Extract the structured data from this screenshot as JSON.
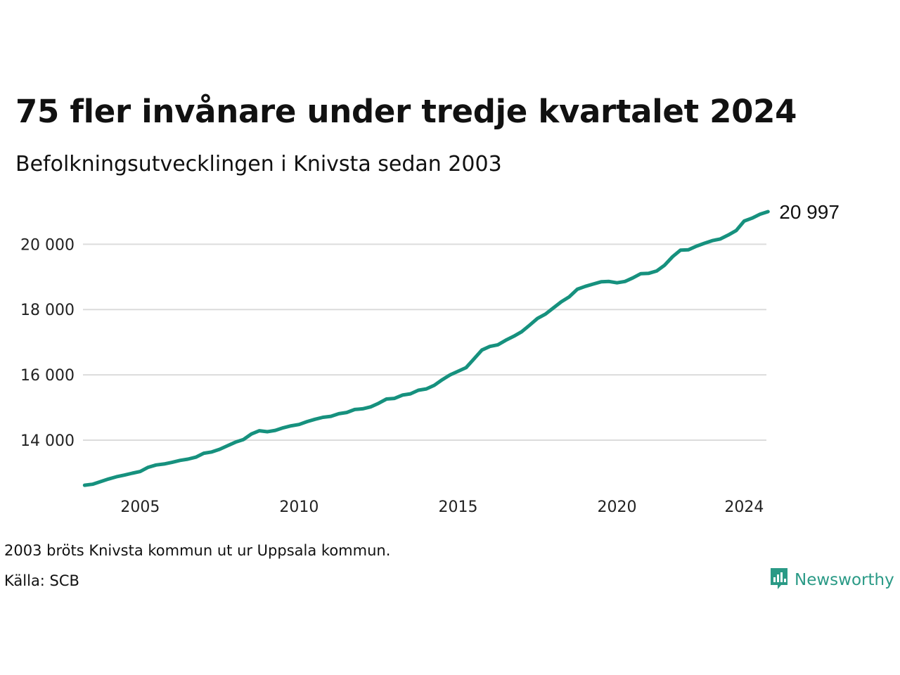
{
  "title": "75 fler invånare under tredje kvartalet 2024",
  "subtitle": "Befolkningsutvecklingen i Knivsta sedan 2003",
  "footer": {
    "note": "2003 bröts Knivsta kommun ut ur Uppsala kommun.",
    "source": "Källa: SCB"
  },
  "brand": {
    "name": "Newsworthy",
    "icon": "newsworthy-logo-icon",
    "color": "#2a9a86"
  },
  "end_label": "20 997",
  "chart_data": {
    "type": "line",
    "title": "75 fler invånare under tredje kvartalet 2024",
    "subtitle": "Befolkningsutvecklingen i Knivsta sedan 2003",
    "xlabel": "",
    "ylabel": "",
    "line_color": "#16917e",
    "grid": true,
    "xlim": [
      2003.2,
      2024.7
    ],
    "ylim": [
      12300,
      21450
    ],
    "y_ticks": [
      14000,
      16000,
      18000,
      20000
    ],
    "y_tick_labels": [
      "14 000",
      "16 000",
      "18 000",
      "20 000"
    ],
    "x_ticks": [
      2005,
      2010,
      2015,
      2020,
      2024
    ],
    "x_tick_labels": [
      "2005",
      "2010",
      "2015",
      "2020",
      "2024"
    ],
    "series": [
      {
        "x": [
          2003.25,
          2003.5,
          2003.75,
          2004.0,
          2004.25,
          2004.5,
          2004.75,
          2005.0,
          2005.25,
          2005.5,
          2005.75,
          2006.0,
          2006.25,
          2006.5,
          2006.75,
          2007.0,
          2007.25,
          2007.5,
          2007.75,
          2008.0,
          2008.25,
          2008.5,
          2008.75,
          2009.0,
          2009.25,
          2009.5,
          2009.75,
          2010.0,
          2010.25,
          2010.5,
          2010.75,
          2011.0,
          2011.25,
          2011.5,
          2011.75,
          2012.0,
          2012.25,
          2012.5,
          2012.75,
          2013.0,
          2013.25,
          2013.5,
          2013.75,
          2014.0,
          2014.25,
          2014.5,
          2014.75,
          2015.0,
          2015.25,
          2015.5,
          2015.75,
          2016.0,
          2016.25,
          2016.5,
          2016.75,
          2017.0,
          2017.25,
          2017.5,
          2017.75,
          2018.0,
          2018.25,
          2018.5,
          2018.75,
          2019.0,
          2019.25,
          2019.5,
          2019.75,
          2020.0,
          2020.25,
          2020.5,
          2020.75,
          2021.0,
          2021.25,
          2021.5,
          2021.75,
          2022.0,
          2022.25,
          2022.5,
          2022.75,
          2023.0,
          2023.25,
          2023.5,
          2023.75,
          2024.0,
          2024.25,
          2024.5,
          2024.75
        ],
        "y": [
          12620,
          12650,
          12730,
          12810,
          12880,
          12930,
          12990,
          13040,
          13170,
          13240,
          13270,
          13320,
          13380,
          13420,
          13480,
          13600,
          13640,
          13720,
          13830,
          13940,
          14020,
          14190,
          14290,
          14260,
          14300,
          14380,
          14440,
          14480,
          14570,
          14640,
          14700,
          14730,
          14810,
          14850,
          14940,
          14960,
          15020,
          15130,
          15260,
          15280,
          15380,
          15420,
          15530,
          15570,
          15680,
          15850,
          16000,
          16110,
          16220,
          16490,
          16760,
          16870,
          16920,
          17060,
          17180,
          17320,
          17520,
          17730,
          17860,
          18050,
          18240,
          18390,
          18620,
          18710,
          18780,
          18850,
          18860,
          18820,
          18860,
          18970,
          19100,
          19110,
          19180,
          19360,
          19620,
          19820,
          19830,
          19940,
          20030,
          20110,
          20160,
          20280,
          20420,
          20710,
          20800,
          20920,
          20997
        ]
      }
    ],
    "end_label": "20 997"
  }
}
